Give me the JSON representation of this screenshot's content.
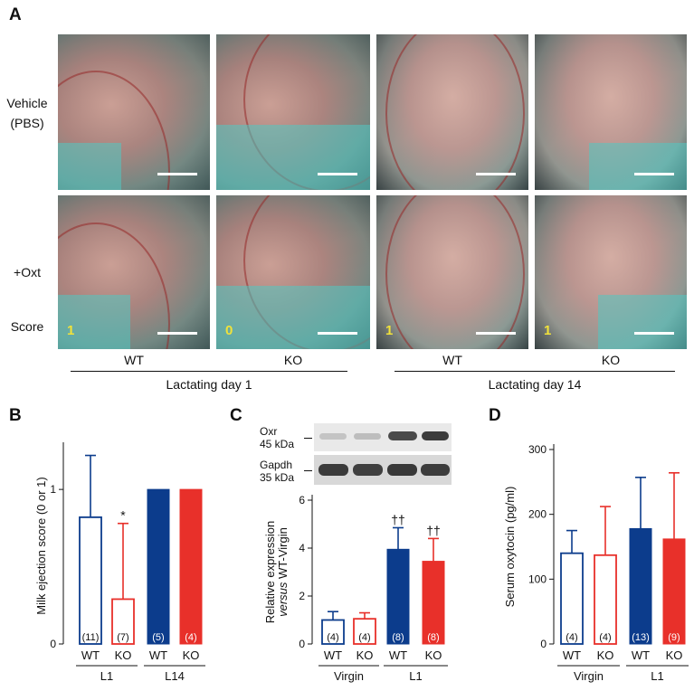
{
  "panels": {
    "A": {
      "label": "A",
      "row_labels": {
        "vehicle_line1": "Vehicle",
        "vehicle_line2": "(PBS)",
        "oxt": "+Oxt",
        "score": "Score"
      },
      "scores": [
        "1",
        "0",
        "1",
        "1"
      ],
      "genotypes": [
        "WT",
        "KO",
        "WT",
        "KO"
      ],
      "groups": [
        "Lactating day 1",
        "Lactating day 14"
      ]
    },
    "B": {
      "label": "B"
    },
    "C": {
      "label": "C",
      "blot": {
        "oxr_line1": "Oxr",
        "oxr_line2": "45 kDa",
        "gapdh_line1": "Gapdh",
        "gapdh_line2": "35 kDa"
      }
    },
    "D": {
      "label": "D"
    }
  },
  "colors": {
    "blue": "#0c3c8c",
    "red": "#e8302a",
    "axis": "#111111"
  },
  "chart_data": [
    {
      "panel": "B",
      "type": "bar",
      "categories": [
        "WT",
        "KO",
        "WT",
        "KO"
      ],
      "groups": [
        {
          "name": "L1",
          "categories": [
            0,
            1
          ]
        },
        {
          "name": "L14",
          "categories": [
            2,
            3
          ]
        }
      ],
      "values": [
        0.82,
        0.29,
        1.0,
        1.0
      ],
      "errors": [
        0.4,
        0.49,
        0,
        0
      ],
      "n": [
        "(11)",
        "(7)",
        "(5)",
        "(4)"
      ],
      "filled": [
        false,
        false,
        true,
        true
      ],
      "colors": [
        "blue",
        "red",
        "blue",
        "red"
      ],
      "annotations": [
        "",
        "*",
        "",
        ""
      ],
      "ylabel": "Milk ejection score (0 or 1)",
      "yticks": [
        "0",
        "1"
      ],
      "ylim": [
        0,
        1.27
      ]
    },
    {
      "panel": "C",
      "type": "bar",
      "categories": [
        "WT",
        "KO",
        "WT",
        "KO"
      ],
      "groups": [
        {
          "name": "Virgin",
          "categories": [
            0,
            1
          ]
        },
        {
          "name": "L1",
          "categories": [
            2,
            3
          ]
        }
      ],
      "values": [
        1.0,
        1.05,
        3.95,
        3.45
      ],
      "errors": [
        0.35,
        0.25,
        0.9,
        0.95
      ],
      "n": [
        "(4)",
        "(4)",
        "(8)",
        "(8)"
      ],
      "filled": [
        false,
        false,
        true,
        true
      ],
      "colors": [
        "blue",
        "red",
        "blue",
        "red"
      ],
      "annotations": [
        "",
        "",
        "††",
        "††"
      ],
      "ylabel_line1": "Relative expression",
      "ylabel_line2_italic": "versus",
      "ylabel_line2_rest": " WT-Virgin",
      "yticks": [
        "0",
        "2",
        "4",
        "6"
      ],
      "ylim": [
        0,
        6
      ]
    },
    {
      "panel": "D",
      "type": "bar",
      "categories": [
        "WT",
        "KO",
        "WT",
        "KO"
      ],
      "groups": [
        {
          "name": "Virgin",
          "categories": [
            0,
            1
          ]
        },
        {
          "name": "L1",
          "categories": [
            2,
            3
          ]
        }
      ],
      "values": [
        140,
        137,
        178,
        162
      ],
      "errors": [
        35,
        75,
        79,
        102
      ],
      "n": [
        "(4)",
        "(4)",
        "(13)",
        "(9)"
      ],
      "filled": [
        false,
        false,
        true,
        true
      ],
      "colors": [
        "blue",
        "red",
        "blue",
        "red"
      ],
      "annotations": [
        "",
        "",
        "",
        ""
      ],
      "ylabel": "Serum oxytocin (pg/ml)",
      "yticks": [
        "0",
        "100",
        "200",
        "300"
      ],
      "ylim": [
        0,
        300
      ]
    }
  ]
}
